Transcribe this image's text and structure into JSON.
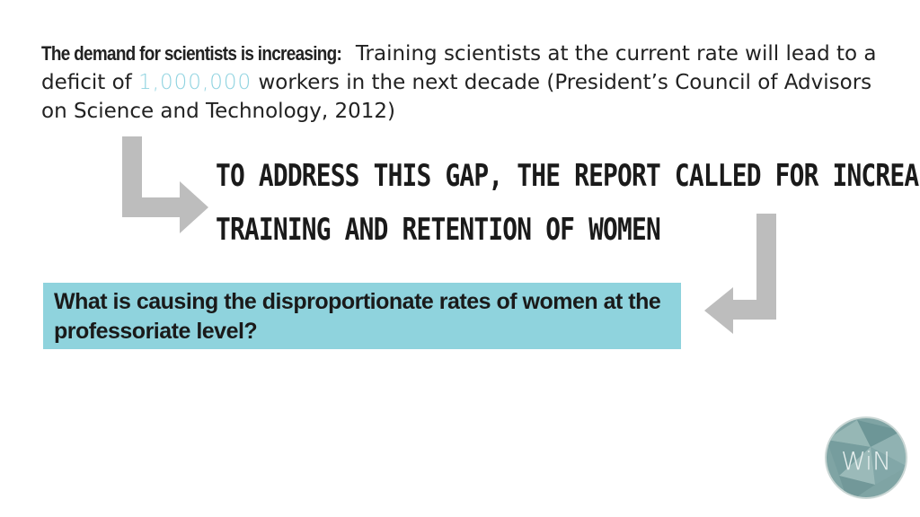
{
  "intro": {
    "lead": "The demand for scientists is increasing:",
    "part1": " Training scientists at the current rate will lead to a deficit of ",
    "stat": "1,000,000",
    "part2": " workers in the next decade (President’s Council of Advisors on Science and Technology, 2012)"
  },
  "gap": {
    "line1": "To address this gap, the report called for increased",
    "line2": "training and retention of women"
  },
  "question": {
    "text": "What is causing the disproportionate rates of women at the professoriate level?"
  },
  "logo": {
    "text": "WiN"
  },
  "colors": {
    "accent": "#8fd3dd",
    "arrow": "#bdbdbd",
    "stat": "#8fd3e0"
  },
  "icons": [
    "turn-right-arrow-icon",
    "turn-left-arrow-icon",
    "win-logo-icon"
  ]
}
